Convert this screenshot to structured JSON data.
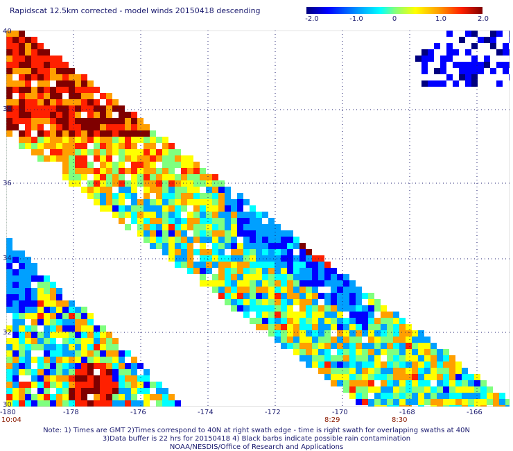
{
  "title": "Rapidscat 12.5km corrected - model winds 20150418 descending",
  "colorbar": {
    "labels": [
      "-2.0",
      "-1.0",
      "0",
      "1.0",
      "2.0"
    ],
    "colors": [
      "#00007f",
      "#0000ff",
      "#00a0ff",
      "#00ffff",
      "#7fff7f",
      "#ffff00",
      "#ff9f00",
      "#ff2000",
      "#7f0000"
    ]
  },
  "axes": {
    "lon_labels": [
      "-180",
      "-178",
      "-176",
      "-174",
      "-172",
      "-170",
      "-168",
      "-166"
    ],
    "lat_labels": [
      "40",
      "38",
      "36",
      "34",
      "32",
      "30"
    ],
    "lon_range": [
      -180,
      -165
    ],
    "lat_range": [
      30,
      40
    ]
  },
  "time_labels": [
    "10:04",
    "8:29",
    "8:30"
  ],
  "notes": [
    "Note: 1) Times are GMT 2)Times correspond to 40N at right swath edge - time is right swath for overlapping swaths at 40N",
    "3)Data buffer is 22 hrs for 20150418 4) Black barbs indicate possible rain contamination",
    "NOAA/NESDIS/Office of Research and Applications"
  ]
}
